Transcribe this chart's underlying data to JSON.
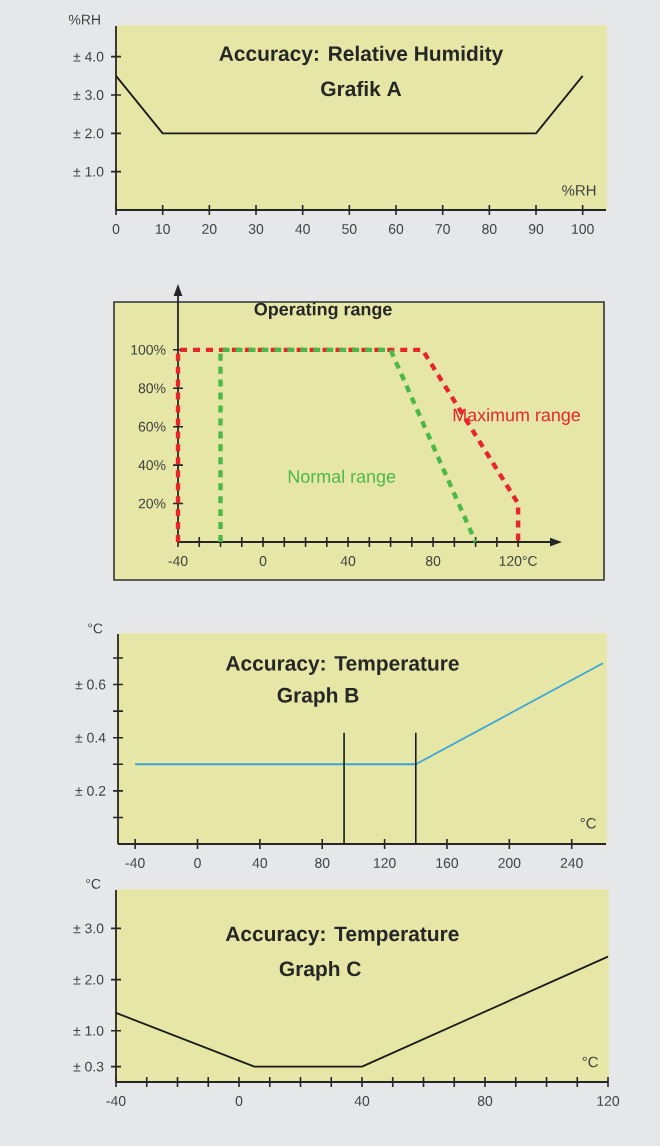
{
  "chart_data": [
    {
      "type": "line",
      "title": "Accuracy: Relative Humidity",
      "subtitle": "Grafik A",
      "xlabel": "%RH",
      "ylabel": "%RH",
      "x": [
        0,
        10,
        90,
        100
      ],
      "series": [
        {
          "color": "#1a1a1a",
          "values": [
            3.5,
            2,
            2,
            3.5
          ]
        }
      ],
      "xlim": [
        0,
        105
      ],
      "ylim": [
        0,
        4.8
      ],
      "xticks": [
        0,
        10,
        20,
        30,
        40,
        50,
        60,
        70,
        80,
        90,
        100
      ],
      "yticks": [
        {
          "value": 1,
          "label": "± 1.0"
        },
        {
          "value": 2,
          "label": "± 2.0"
        },
        {
          "value": 3,
          "label": "± 3.0"
        },
        {
          "value": 4,
          "label": "± 4.0"
        }
      ]
    },
    {
      "type": "line",
      "title": "Operating range",
      "line_style": "dashed",
      "series": [
        {
          "name": "Maximum range",
          "color": "#e8262a",
          "x": [
            -40,
            -40,
            75,
            120,
            120
          ],
          "values": [
            0,
            100,
            100,
            20,
            0
          ]
        },
        {
          "name": "Normal range",
          "color": "#4cb848",
          "x": [
            -20,
            -20,
            60,
            100
          ],
          "values": [
            0,
            100,
            100,
            0
          ]
        }
      ],
      "xlim": [
        -40,
        135
      ],
      "ylim": [
        0,
        128
      ],
      "xticks": [
        -40,
        {
          "value": -30,
          "label": null
        },
        {
          "value": -20,
          "label": null
        },
        {
          "value": -10,
          "label": null
        },
        0,
        {
          "value": 10,
          "label": null
        },
        {
          "value": 20,
          "label": null
        },
        {
          "value": 30,
          "label": null
        },
        40,
        {
          "value": 50,
          "label": null
        },
        {
          "value": 60,
          "label": null
        },
        {
          "value": 70,
          "label": null
        },
        80,
        {
          "value": 90,
          "label": null
        },
        {
          "value": 100,
          "label": null
        },
        {
          "value": 110,
          "label": null
        },
        {
          "value": 120,
          "label": "120°C"
        }
      ],
      "yticks": [
        {
          "value": 20,
          "label": "20%"
        },
        {
          "value": 40,
          "label": "40%"
        },
        {
          "value": 60,
          "label": "60%"
        },
        {
          "value": 80,
          "label": "80%"
        },
        {
          "value": 100,
          "label": "100%"
        }
      ]
    },
    {
      "type": "line",
      "title": "Accuracy: Temperature",
      "subtitle": "Graph B",
      "xlabel": "°C",
      "ylabel": "°C",
      "x": [
        -40,
        140,
        260
      ],
      "series": [
        {
          "color": "#3aa6d8",
          "values": [
            0.3,
            0.3,
            0.68
          ]
        }
      ],
      "xlim": [
        -51,
        262
      ],
      "ylim": [
        0,
        0.79
      ],
      "xticks": [
        -40,
        0,
        40,
        80,
        120,
        160,
        200,
        240
      ],
      "yticks": [
        {
          "value": 0.1,
          "label": null
        },
        {
          "value": 0.2,
          "label": "± 0.2"
        },
        {
          "value": 0.3,
          "label": null
        },
        {
          "value": 0.4,
          "label": "± 0.4"
        },
        {
          "value": 0.5,
          "label": null
        },
        {
          "value": 0.6,
          "label": "± 0.6"
        },
        {
          "value": 0.7,
          "label": null
        }
      ],
      "ref_lines": [
        {
          "axis": "x",
          "value": 94,
          "color": "#1a1a1a"
        },
        {
          "axis": "x",
          "value": 140,
          "color": "#1a1a1a"
        }
      ]
    },
    {
      "type": "line",
      "title": "Accuracy: Temperature",
      "subtitle": "Graph C",
      "xlabel": "°C",
      "ylabel": "°C",
      "x": [
        -40,
        5,
        40,
        120
      ],
      "series": [
        {
          "color": "#1a1a1a",
          "values": [
            1.35,
            0.3,
            0.3,
            2.45
          ]
        }
      ],
      "xlim": [
        -40,
        120
      ],
      "ylim": [
        0,
        3.75
      ],
      "xticks": [
        -40,
        {
          "value": -30,
          "label": null
        },
        {
          "value": -20,
          "label": null
        },
        {
          "value": -10,
          "label": null
        },
        0,
        {
          "value": 10,
          "label": null
        },
        {
          "value": 20,
          "label": null
        },
        {
          "value": 30,
          "label": null
        },
        40,
        {
          "value": 50,
          "label": null
        },
        {
          "value": 60,
          "label": null
        },
        {
          "value": 70,
          "label": null
        },
        80,
        {
          "value": 90,
          "label": null
        },
        {
          "value": 100,
          "label": null
        },
        {
          "value": 110,
          "label": null
        },
        120
      ],
      "yticks": [
        {
          "value": 0.3,
          "label": "± 0.3"
        },
        {
          "value": 1,
          "label": "± 1.0"
        },
        {
          "value": 2,
          "label": "± 2.0"
        },
        {
          "value": 3,
          "label": "± 3.0"
        }
      ]
    }
  ]
}
